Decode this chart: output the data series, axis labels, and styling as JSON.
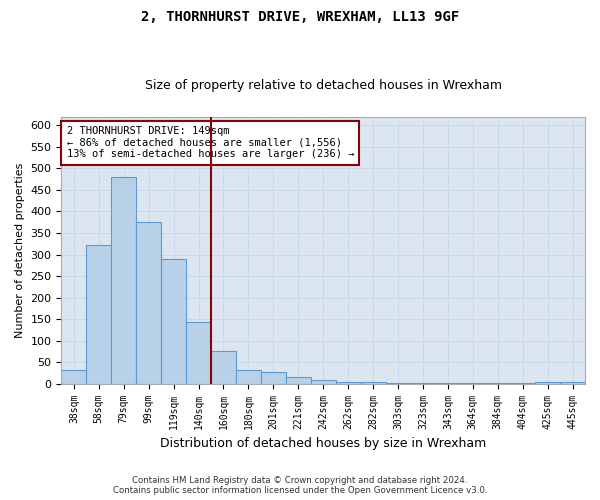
{
  "title": "2, THORNHURST DRIVE, WREXHAM, LL13 9GF",
  "subtitle": "Size of property relative to detached houses in Wrexham",
  "xlabel": "Distribution of detached houses by size in Wrexham",
  "ylabel": "Number of detached properties",
  "bar_labels": [
    "38sqm",
    "58sqm",
    "79sqm",
    "99sqm",
    "119sqm",
    "140sqm",
    "160sqm",
    "180sqm",
    "201sqm",
    "221sqm",
    "242sqm",
    "262sqm",
    "282sqm",
    "303sqm",
    "323sqm",
    "343sqm",
    "364sqm",
    "384sqm",
    "404sqm",
    "425sqm",
    "445sqm"
  ],
  "bar_values": [
    32,
    322,
    480,
    375,
    290,
    143,
    75,
    32,
    28,
    15,
    8,
    5,
    3,
    2,
    2,
    1,
    1,
    1,
    1,
    5,
    3
  ],
  "vline_x_idx": 5.5,
  "bar_color": "#b8d0e8",
  "bar_edge_color": "#5b9bd5",
  "vline_color": "#8b0000",
  "annotation_box_color": "#8b0000",
  "background_color": "#dce6f1",
  "grid_color": "#c8d8ec",
  "footer_text": "Contains HM Land Registry data © Crown copyright and database right 2024.\nContains public sector information licensed under the Open Government Licence v3.0.",
  "annotation_title": "2 THORNHURST DRIVE: 149sqm",
  "annotation_line1": "← 86% of detached houses are smaller (1,556)",
  "annotation_line2": "13% of semi-detached houses are larger (236) →",
  "ylim": [
    0,
    620
  ],
  "yticks": [
    0,
    50,
    100,
    150,
    200,
    250,
    300,
    350,
    400,
    450,
    500,
    550,
    600
  ]
}
